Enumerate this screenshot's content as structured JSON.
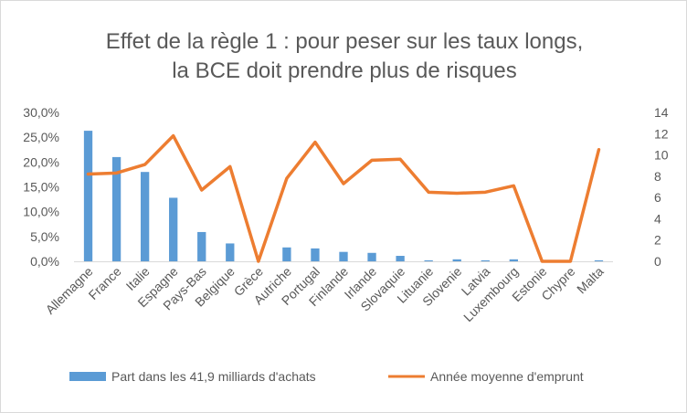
{
  "chart_data": {
    "type": "bar",
    "title": [
      "Effet de la règle 1 : pour peser sur les taux longs,",
      "la BCE doit prendre plus de risques"
    ],
    "categories": [
      "Allemagne",
      "France",
      "Italie",
      "Espagne",
      "Pays-Bas",
      "Belgique",
      "Grèce",
      "Autriche",
      "Portugal",
      "Finlande",
      "Irlande",
      "Slovaquie",
      "Lituanie",
      "Slovenie",
      "Latvia",
      "Luxembourg",
      "Estonie",
      "Chypre",
      "Malta"
    ],
    "series": [
      {
        "name": "Part dans les 41,9 milliards d'achats",
        "type": "bar",
        "axis": "left",
        "color": "#5b9bd5",
        "values": [
          26.3,
          21.0,
          18.0,
          12.8,
          5.9,
          3.6,
          0.0,
          2.8,
          2.6,
          1.9,
          1.7,
          1.1,
          0.2,
          0.4,
          0.2,
          0.4,
          0.0,
          0.0,
          0.2
        ]
      },
      {
        "name": "Année moyenne d'emprunt",
        "type": "line",
        "axis": "right",
        "color": "#ed7d31",
        "values": [
          8.2,
          8.3,
          9.1,
          11.8,
          6.7,
          8.9,
          0.0,
          7.8,
          11.2,
          7.3,
          9.5,
          9.6,
          6.5,
          6.4,
          6.5,
          7.1,
          0.0,
          0.0,
          10.5
        ]
      }
    ],
    "y_left": {
      "ylim": [
        0,
        30
      ],
      "ticks": [
        "0,0%",
        "5,0%",
        "10,0%",
        "15,0%",
        "20,0%",
        "25,0%",
        "30,0%"
      ]
    },
    "y_right": {
      "ylim": [
        0,
        14
      ],
      "ticks": [
        "0",
        "2",
        "4",
        "6",
        "8",
        "10",
        "12",
        "14"
      ]
    },
    "grid": false,
    "legend_position": "bottom"
  }
}
